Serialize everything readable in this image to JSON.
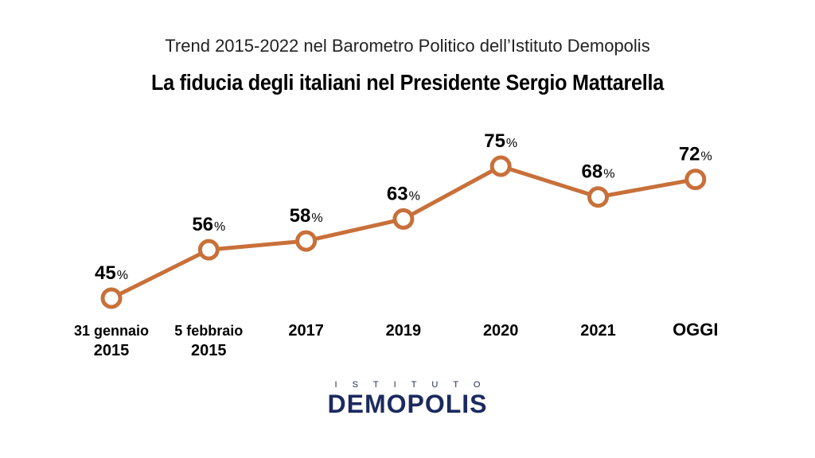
{
  "header": {
    "subtitle": "Trend 2015-2022 nel Barometro Politico dell’Istituto Demopolis",
    "title": "La fiducia degli italiani nel Presidente Sergio Mattarella"
  },
  "logo": {
    "top_text": "ISTITUTO",
    "main_text": "DEMOPOLIS"
  },
  "colors": {
    "line": "#c8703a",
    "marker_fill": "#ffffff",
    "logo": "#1c2a5e"
  },
  "chart_data": {
    "type": "line",
    "categories": [
      [
        "31 gennaio",
        "2015"
      ],
      [
        "5 febbraio",
        "2015"
      ],
      [
        "2017"
      ],
      [
        "2019"
      ],
      [
        "2020"
      ],
      [
        "2021"
      ],
      [
        "OGGI"
      ]
    ],
    "series": [
      {
        "values": [
          45,
          56,
          58,
          63,
          75,
          68,
          72
        ]
      }
    ],
    "value_suffix": "%",
    "title": "La fiducia degli italiani nel Presidente Sergio Mattarella",
    "subtitle": "Trend 2015-2022 nel Barometro Politico dell’Istituto Demopolis",
    "grid": false,
    "legend": "none"
  }
}
